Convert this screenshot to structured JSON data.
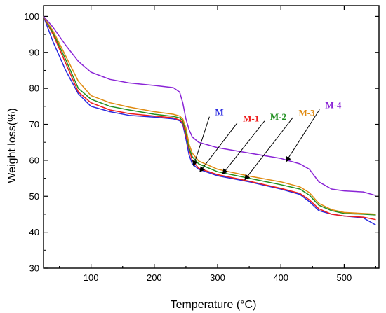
{
  "chart_data": {
    "type": "line",
    "title": "",
    "xlabel": "Temperature (°C)",
    "ylabel": "Weight loss(%)",
    "xlim": [
      25,
      555
    ],
    "ylim": [
      30,
      103
    ],
    "xticks": [
      100,
      200,
      300,
      400,
      500
    ],
    "yticks": [
      30,
      40,
      50,
      60,
      70,
      80,
      90,
      100
    ],
    "grid": false,
    "legend": "annotated with arrows",
    "series": [
      {
        "name": "M",
        "color": "#2a2ae0",
        "label_at": [
          296,
          72.5
        ],
        "arrow_to": [
          262,
          58.5
        ],
        "x": [
          25,
          40,
          60,
          80,
          100,
          130,
          160,
          200,
          230,
          240,
          245,
          250,
          255,
          260,
          270,
          300,
          350,
          400,
          430,
          445,
          460,
          480,
          500,
          530,
          550
        ],
        "y": [
          100,
          93,
          85,
          78.5,
          75,
          73.5,
          72.5,
          72,
          71.5,
          71,
          70,
          66,
          61.5,
          59,
          57.5,
          55.7,
          54,
          52,
          50.5,
          48.5,
          46,
          45,
          44.5,
          44,
          42
        ]
      },
      {
        "name": "M-1",
        "color": "#ee1c1c",
        "label_at": [
          340,
          70.8
        ],
        "arrow_to": [
          272,
          56.8
        ],
        "x": [
          25,
          40,
          60,
          80,
          100,
          130,
          160,
          200,
          230,
          240,
          245,
          250,
          255,
          260,
          270,
          300,
          350,
          400,
          430,
          445,
          460,
          480,
          500,
          530,
          550
        ],
        "y": [
          100,
          95,
          87,
          79,
          76,
          74,
          73,
          72.3,
          71.8,
          71.2,
          70.5,
          67,
          63,
          60,
          57.8,
          56,
          54.2,
          52.2,
          50.8,
          49,
          46.5,
          45,
          44.5,
          44.2,
          43.5
        ]
      },
      {
        "name": "M-2",
        "color": "#1f8f1f",
        "label_at": [
          383,
          71.3
        ],
        "arrow_to": [
          308,
          56.2
        ],
        "x": [
          25,
          40,
          60,
          80,
          100,
          130,
          160,
          200,
          230,
          240,
          245,
          250,
          255,
          260,
          270,
          300,
          350,
          400,
          430,
          445,
          460,
          480,
          500,
          530,
          550
        ],
        "y": [
          100,
          95.5,
          88,
          80,
          77,
          75,
          74,
          72.8,
          72.2,
          71.8,
          71,
          68,
          63.5,
          61,
          59,
          56.8,
          55,
          53.2,
          52,
          50.3,
          47.5,
          46,
          45.2,
          45,
          44.8
        ]
      },
      {
        "name": "M-3",
        "color": "#e08a10",
        "label_at": [
          428,
          72.3
        ],
        "arrow_to": [
          343,
          54.6
        ],
        "x": [
          25,
          40,
          60,
          80,
          100,
          130,
          160,
          200,
          230,
          240,
          245,
          250,
          255,
          260,
          270,
          300,
          350,
          400,
          430,
          445,
          460,
          480,
          500,
          530,
          550
        ],
        "y": [
          100,
          96,
          89,
          82,
          78,
          76,
          74.8,
          73.5,
          72.8,
          72.3,
          71.5,
          69,
          64.5,
          62,
          59.8,
          57.5,
          55.6,
          54,
          52.6,
          51,
          48,
          46.3,
          45.5,
          45.2,
          45
        ]
      },
      {
        "name": "M-4",
        "color": "#8a24d6",
        "label_at": [
          470,
          74.5
        ],
        "arrow_to": [
          408,
          59.6
        ],
        "x": [
          25,
          40,
          60,
          80,
          100,
          130,
          160,
          200,
          230,
          240,
          245,
          250,
          255,
          260,
          270,
          300,
          350,
          400,
          430,
          445,
          460,
          480,
          500,
          530,
          550
        ],
        "y": [
          100,
          97,
          92,
          87.5,
          84.5,
          82.5,
          81.5,
          80.8,
          80.2,
          79,
          76,
          71.5,
          68.5,
          66.5,
          65,
          63.5,
          62,
          60.5,
          59,
          57.5,
          54,
          52,
          51.5,
          51.2,
          50.2
        ]
      }
    ]
  }
}
